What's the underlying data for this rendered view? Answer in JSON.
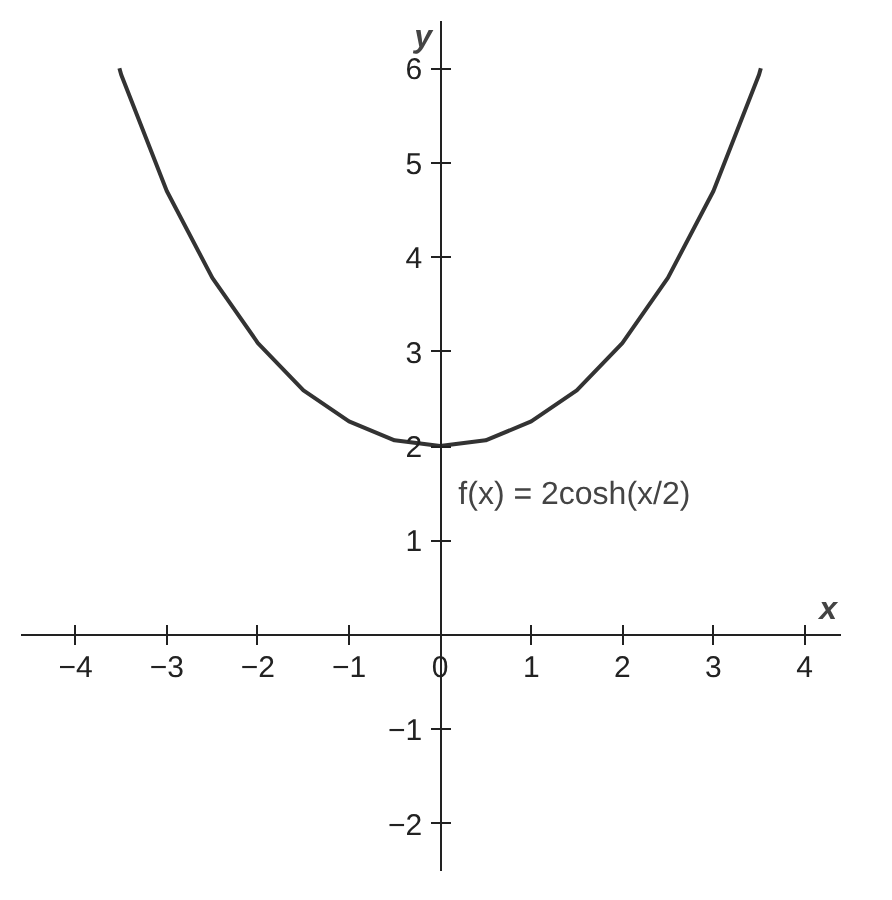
{
  "chart_data": {
    "type": "line",
    "xlabel": "x",
    "ylabel": "y",
    "x": [
      -3.52,
      -3.5,
      -3,
      -2.5,
      -2,
      -1.5,
      -1,
      -0.5,
      0,
      0.5,
      1,
      1.5,
      2,
      2.5,
      3,
      3.5,
      3.52
    ],
    "series": [
      {
        "color": "#333333",
        "values": [
          6.0,
          5.93,
          4.7,
          3.78,
          3.09,
          2.59,
          2.26,
          2.06,
          2.0,
          2.06,
          2.26,
          2.59,
          3.09,
          3.78,
          4.7,
          5.93,
          6.0
        ]
      }
    ],
    "xlim": [
      -4.6,
      4.4
    ],
    "ylim": [
      -2.5,
      6.5
    ],
    "xticks": [
      -4,
      -3,
      -2,
      -1,
      0,
      1,
      2,
      3,
      4
    ],
    "yticks": [
      -2,
      -1,
      1,
      2,
      3,
      4,
      5,
      6
    ],
    "annotations": [
      "f(x) = 2cosh(x/2)"
    ],
    "grid": false,
    "marker": "none",
    "line_style": "solid"
  }
}
